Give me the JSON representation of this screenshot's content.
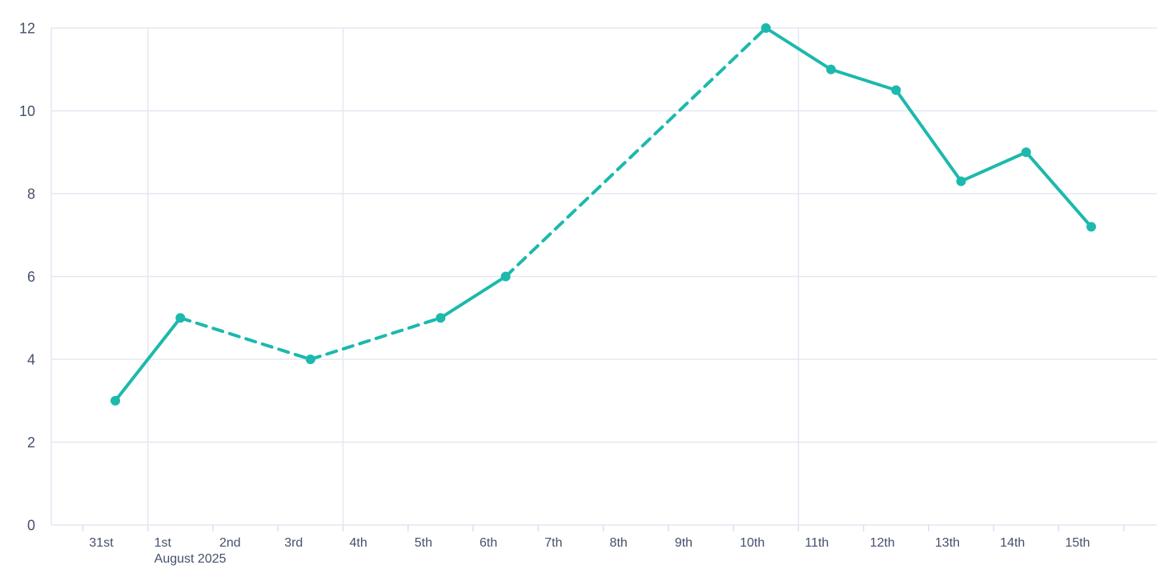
{
  "chart_data": {
    "type": "line",
    "title": "",
    "xlabel": "",
    "ylabel": "",
    "x_categories": [
      "31st",
      "1st",
      "2nd",
      "3rd",
      "4th",
      "5th",
      "6th",
      "7th",
      "8th",
      "9th",
      "10th",
      "11th",
      "12th",
      "13th",
      "14th",
      "15th"
    ],
    "x_secondary_label": "August 2025",
    "x_secondary_label_under": "1st",
    "y_ticks": [
      "0",
      "2",
      "4",
      "6",
      "8",
      "10",
      "12"
    ],
    "y_tick_values": [
      0,
      2,
      4,
      6,
      8,
      10,
      12
    ],
    "ylim": [
      0,
      12
    ],
    "grid": {
      "horizontal": true,
      "vertical_major_at": [
        "1st",
        "4th",
        "11th"
      ],
      "left_plot_border": true
    },
    "legend_position": "none",
    "series": [
      {
        "name": "daily-values",
        "color": "#1cb9ad",
        "marker": "circle",
        "points": [
          {
            "day": "31st",
            "value": 3,
            "line_to_next": "solid"
          },
          {
            "day": "1st",
            "value": 5,
            "line_to_next": "dashed"
          },
          {
            "day": "3rd",
            "value": 4,
            "line_to_next": "dashed"
          },
          {
            "day": "5th",
            "value": 5,
            "line_to_next": "solid"
          },
          {
            "day": "6th",
            "value": 6,
            "line_to_next": "dashed"
          },
          {
            "day": "10th",
            "value": 12,
            "line_to_next": "solid"
          },
          {
            "day": "11th",
            "value": 11,
            "line_to_next": "solid"
          },
          {
            "day": "12th",
            "value": 10.5,
            "line_to_next": "solid"
          },
          {
            "day": "13th",
            "value": 8.3,
            "line_to_next": "solid"
          },
          {
            "day": "14th",
            "value": 9,
            "line_to_next": "solid"
          },
          {
            "day": "15th",
            "value": 7.2,
            "line_to_next": "none"
          }
        ]
      }
    ]
  },
  "colors": {
    "background": "#ffffff",
    "line": "#1cb9ad",
    "gridline": "#e3e7f1",
    "tick": "#d9dfed",
    "axis_label": "#44506b"
  }
}
